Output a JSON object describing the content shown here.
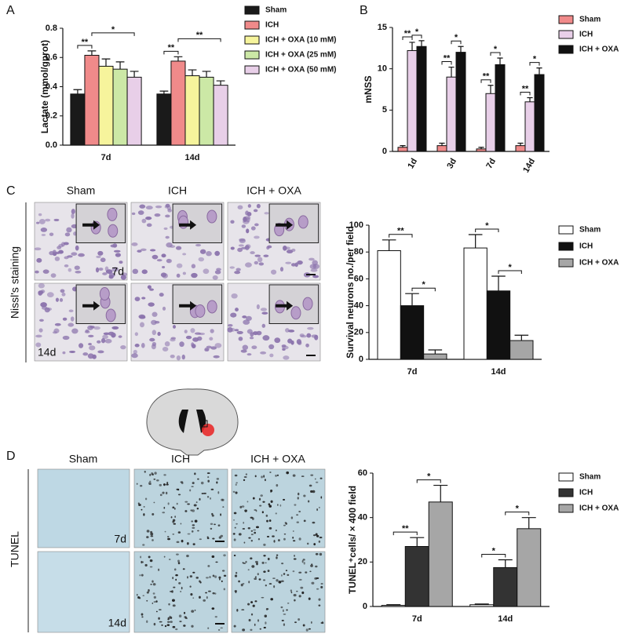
{
  "panel_labels": [
    "A",
    "B",
    "C",
    "D"
  ],
  "nissl": {
    "title": "Nissl's staining",
    "columns": [
      "Sham",
      "ICH",
      "ICH + OXA"
    ],
    "rows": [
      "7d",
      "14d"
    ]
  },
  "tunel": {
    "title": "TUNEL",
    "columns": [
      "Sham",
      "ICH",
      "ICH + OXA"
    ],
    "rows": [
      "7d",
      "14d"
    ]
  },
  "chart_data": [
    {
      "type": "bar",
      "y_label": "Lactate (mmol/gprot)",
      "categories": [
        "7d",
        "14d"
      ],
      "ylim": [
        0,
        0.8
      ],
      "yticks": [
        {
          "value": 0,
          "label": "0.0"
        },
        0.2,
        0.4,
        0.6,
        0.8
      ],
      "series": [
        {
          "name": "Sham",
          "color": "#1a1a1a",
          "values": [
            0.35,
            0.35
          ],
          "errors": [
            0.03,
            0.02
          ]
        },
        {
          "name": "ICH",
          "color": "#f08a8a",
          "values": [
            0.615,
            0.575
          ],
          "errors": [
            0.03,
            0.03
          ]
        },
        {
          "name": "ICH + OXA (10 mM)",
          "color": "#f6f49c",
          "values": [
            0.54,
            0.475
          ],
          "errors": [
            0.05,
            0.04
          ]
        },
        {
          "name": "ICH + OXA (25 mM)",
          "color": "#cce8a6",
          "values": [
            0.52,
            0.465
          ],
          "errors": [
            0.05,
            0.04
          ]
        },
        {
          "name": "ICH + OXA (50 mM)",
          "color": "#e8cfe8",
          "values": [
            0.465,
            0.41
          ],
          "errors": [
            0.04,
            0.03
          ]
        }
      ],
      "annotations": [
        "**",
        "*",
        "**",
        "**"
      ]
    },
    {
      "type": "bar",
      "y_label": "mNSS",
      "categories": [
        "1d",
        "3d",
        "7d",
        "14d"
      ],
      "ylim": [
        0,
        15
      ],
      "yticks": [
        0,
        5,
        10,
        15
      ],
      "series": [
        {
          "name": "Sham",
          "color": "#f08a8a",
          "values": [
            0.5,
            0.7,
            0.3,
            0.7
          ],
          "errors": [
            0.2,
            0.3,
            0.2,
            0.3
          ]
        },
        {
          "name": "ICH",
          "color": "#e8cfe8",
          "values": [
            12.2,
            9.0,
            7.0,
            6.0
          ],
          "errors": [
            1.0,
            1.2,
            1.0,
            0.5
          ]
        },
        {
          "name": "ICH + OXA",
          "color": "#111111",
          "values": [
            12.7,
            12.0,
            10.5,
            9.3
          ],
          "errors": [
            0.7,
            0.7,
            0.8,
            0.8
          ]
        }
      ],
      "annotations": [
        "**",
        "*",
        "**",
        "*",
        "**",
        "*",
        "**",
        "*"
      ]
    },
    {
      "type": "bar",
      "y_label": "Survival neurons no./per field",
      "categories": [
        "7d",
        "14d"
      ],
      "ylim": [
        0,
        100
      ],
      "yticks": [
        0,
        20,
        40,
        60,
        80,
        100
      ],
      "series": [
        {
          "name": "Sham",
          "color": "#ffffff",
          "values": [
            81,
            83
          ],
          "errors": [
            8,
            10
          ]
        },
        {
          "name": "ICH",
          "color": "#111111",
          "values": [
            40,
            51
          ],
          "errors": [
            9,
            11
          ]
        },
        {
          "name": "ICH + OXA",
          "color": "#a6a6a6",
          "values": [
            4,
            14
          ],
          "errors": [
            3,
            4
          ]
        }
      ],
      "annotations": [
        "**",
        "*",
        "*",
        "*"
      ]
    },
    {
      "type": "bar",
      "y_label": "TUNEL⁺cells/ × 400 field",
      "categories": [
        "7d",
        "14d"
      ],
      "ylim": [
        0,
        60
      ],
      "yticks": [
        0,
        20,
        40,
        60
      ],
      "series": [
        {
          "name": "Sham",
          "color": "#ffffff",
          "values": [
            0.5,
            0.8
          ],
          "errors": [
            0.3,
            0.3
          ]
        },
        {
          "name": "ICH",
          "color": "#333333",
          "values": [
            27,
            17.5
          ],
          "errors": [
            4,
            3.5
          ]
        },
        {
          "name": "ICH + OXA",
          "color": "#a6a6a6",
          "values": [
            47,
            35
          ],
          "errors": [
            7.5,
            5
          ]
        }
      ],
      "annotations": [
        "**",
        "*",
        "*",
        "*"
      ]
    }
  ]
}
